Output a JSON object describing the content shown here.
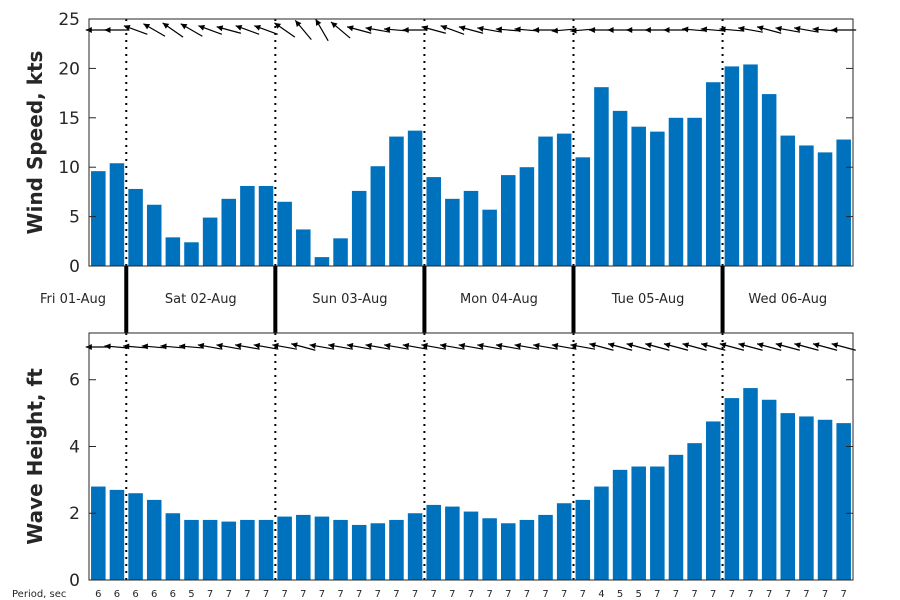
{
  "chart_data": [
    {
      "type": "bar",
      "ylabel": "Wind Speed, kts",
      "ylim": [
        0,
        25
      ],
      "yticks": [
        "0",
        "5",
        "10",
        "15",
        "20",
        "25"
      ],
      "color": "#0072bd",
      "values": [
        9.6,
        10.4,
        7.8,
        6.2,
        2.9,
        2.4,
        4.9,
        6.8,
        8.1,
        8.1,
        6.5,
        3.7,
        0.9,
        2.8,
        7.6,
        10.1,
        13.1,
        13.7,
        9.0,
        6.8,
        7.6,
        5.7,
        9.2,
        10.0,
        13.1,
        13.4,
        11.0,
        18.1,
        15.7,
        14.1,
        13.6,
        15.0,
        15.0,
        18.6,
        20.2,
        20.4,
        17.4,
        13.2,
        12.2,
        11.5,
        12.8
      ],
      "direction_arrows_deg": [
        180,
        180,
        160,
        150,
        145,
        150,
        160,
        165,
        160,
        160,
        145,
        130,
        120,
        140,
        165,
        170,
        175,
        180,
        165,
        160,
        165,
        170,
        175,
        175,
        180,
        185,
        185,
        180,
        180,
        180,
        180,
        180,
        175,
        175,
        175,
        170,
        165,
        170,
        170,
        175,
        180
      ]
    },
    {
      "type": "bar",
      "ylabel": "Wave Height, ft",
      "ylim": [
        0,
        7.4
      ],
      "yticks": [
        "0",
        "2",
        "4",
        "6"
      ],
      "color": "#0072bd",
      "values": [
        2.8,
        2.7,
        2.6,
        2.4,
        2.0,
        1.8,
        1.8,
        1.75,
        1.8,
        1.8,
        1.9,
        1.95,
        1.9,
        1.8,
        1.65,
        1.7,
        1.8,
        2.0,
        2.25,
        2.2,
        2.05,
        1.85,
        1.7,
        1.8,
        1.95,
        2.3,
        2.4,
        2.8,
        3.3,
        3.4,
        3.4,
        3.75,
        4.1,
        4.75,
        5.45,
        5.75,
        5.4,
        5.0,
        4.9,
        4.8,
        4.7
      ],
      "direction_arrows_deg": [
        180,
        175,
        175,
        175,
        175,
        175,
        170,
        170,
        170,
        170,
        170,
        165,
        170,
        170,
        170,
        170,
        170,
        170,
        170,
        170,
        170,
        170,
        170,
        170,
        170,
        170,
        170,
        165,
        165,
        165,
        165,
        165,
        165,
        165,
        165,
        165,
        165,
        165,
        165,
        165,
        165
      ]
    }
  ],
  "days": [
    "Fri 01-Aug",
    "Sat 02-Aug",
    "Sun 03-Aug",
    "Mon 04-Aug",
    "Tue 05-Aug",
    "Wed 06-Aug"
  ],
  "day_boundaries_index": [
    2,
    10,
    18,
    26,
    34
  ],
  "period_title": "Period, sec",
  "periods": [
    "6",
    "6",
    "6",
    "6",
    "6",
    "5",
    "7",
    "7",
    "7",
    "7",
    "7",
    "7",
    "7",
    "7",
    "7",
    "7",
    "7",
    "7",
    "7",
    "7",
    "7",
    "7",
    "7",
    "7",
    "7",
    "7",
    "7",
    "4",
    "5",
    "5",
    "7",
    "7",
    "7",
    "7",
    "7",
    "7",
    "7",
    "7",
    "7",
    "7",
    "7"
  ]
}
